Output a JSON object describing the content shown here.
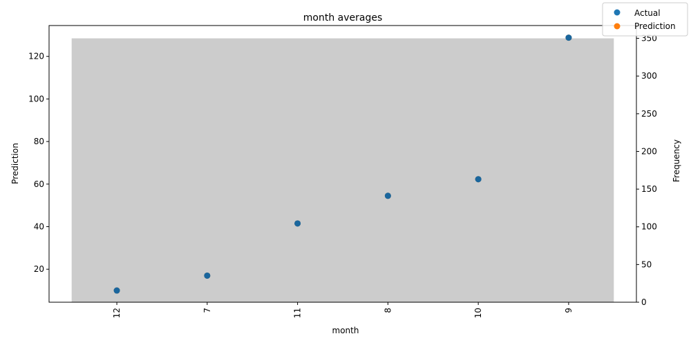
{
  "chart_data": {
    "type": "scatter",
    "title": "month averages",
    "xlabel": "month",
    "ylabel": "Prediction",
    "y2label": "Frequency",
    "categories": [
      "12",
      "7",
      "11",
      "8",
      "10",
      "9"
    ],
    "ylim": [
      4.5,
      134.5
    ],
    "y_ticks": [
      20,
      40,
      60,
      80,
      100,
      120
    ],
    "y2lim": [
      0,
      367
    ],
    "y2_ticks": [
      0,
      50,
      100,
      150,
      200,
      250,
      300,
      350
    ],
    "series": [
      {
        "name": "Actual",
        "color": "#1f77b4",
        "values": [
          10.0,
          17.0,
          41.5,
          54.5,
          62.3,
          128.8
        ]
      },
      {
        "name": "Prediction",
        "color": "#ff7f0e",
        "values": [
          10.0,
          17.0,
          41.5,
          54.5,
          62.3,
          128.8
        ]
      }
    ],
    "frequency_bar": {
      "value": 350,
      "color": "#cccccc"
    },
    "legend": {
      "placement": "top-right",
      "entries": [
        "Actual",
        "Prediction"
      ]
    },
    "grid": false
  }
}
